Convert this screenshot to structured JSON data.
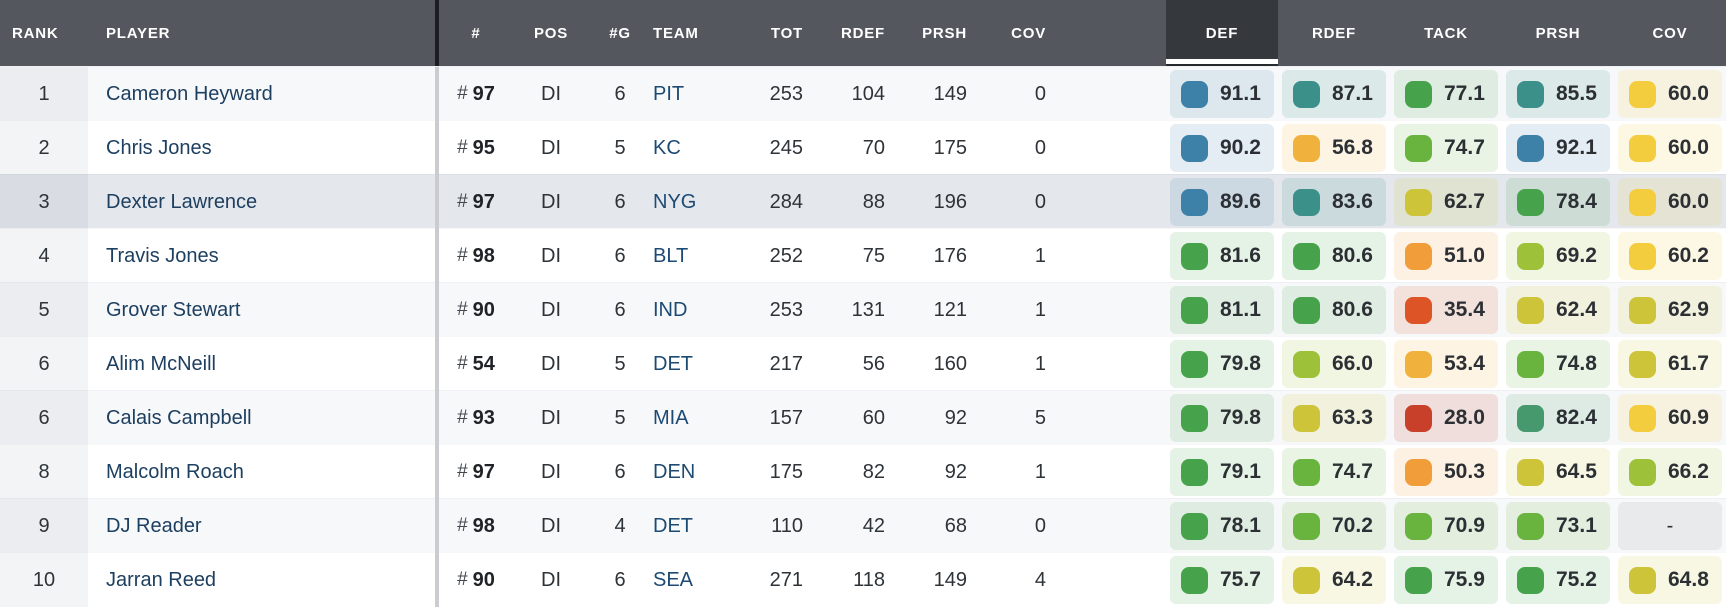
{
  "columns": {
    "rank": "RANK",
    "player": "PLAYER",
    "jersey": "#",
    "pos": "POS",
    "games": "#G",
    "team": "TEAM",
    "tot": "TOT",
    "rdef": "RDEF",
    "prsh": "PRSH",
    "cov": "COV",
    "grade_def": "DEF",
    "grade_rdef": "RDEF",
    "grade_tack": "TACK",
    "grade_prsh": "PRSH",
    "grade_cov": "COV"
  },
  "sorted_column": "DEF",
  "palette": {
    "blue": "#3d80a8",
    "teal": "#3b9089",
    "teal-green": "#46996c",
    "green": "#47a34b",
    "green-mid": "#68b43f",
    "lime": "#9dc23a",
    "olive": "#cdc43a",
    "yellow": "#f3cd3e",
    "amber": "#f0b23d",
    "orange": "#f09d3a",
    "red-orange": "#dd5427",
    "red": "#c8402a",
    "none": "#9aa0aa",
    "header_bg": "#54575e",
    "header_active_bg": "#35383d",
    "row_highlight_bg": "#e4e7ec",
    "link_color": "#1d3f60"
  },
  "rows": [
    {
      "rank": "1",
      "player": "Cameron Heyward",
      "jersey": "97",
      "pos": "DI",
      "games": "6",
      "team": "PIT",
      "tot": "253",
      "rdef": "104",
      "prsh": "149",
      "cov": "0",
      "highlighted": false,
      "grades": [
        {
          "value": "91.1",
          "color": "blue"
        },
        {
          "value": "87.1",
          "color": "teal"
        },
        {
          "value": "77.1",
          "color": "green"
        },
        {
          "value": "85.5",
          "color": "teal"
        },
        {
          "value": "60.0",
          "color": "yellow"
        }
      ]
    },
    {
      "rank": "2",
      "player": "Chris Jones",
      "jersey": "95",
      "pos": "DI",
      "games": "5",
      "team": "KC",
      "tot": "245",
      "rdef": "70",
      "prsh": "175",
      "cov": "0",
      "highlighted": false,
      "grades": [
        {
          "value": "90.2",
          "color": "blue"
        },
        {
          "value": "56.8",
          "color": "amber"
        },
        {
          "value": "74.7",
          "color": "green-mid"
        },
        {
          "value": "92.1",
          "color": "blue"
        },
        {
          "value": "60.0",
          "color": "yellow"
        }
      ]
    },
    {
      "rank": "3",
      "player": "Dexter Lawrence",
      "jersey": "97",
      "pos": "DI",
      "games": "6",
      "team": "NYG",
      "tot": "284",
      "rdef": "88",
      "prsh": "196",
      "cov": "0",
      "highlighted": true,
      "grades": [
        {
          "value": "89.6",
          "color": "blue"
        },
        {
          "value": "83.6",
          "color": "teal"
        },
        {
          "value": "62.7",
          "color": "olive"
        },
        {
          "value": "78.4",
          "color": "green"
        },
        {
          "value": "60.0",
          "color": "yellow"
        }
      ]
    },
    {
      "rank": "4",
      "player": "Travis Jones",
      "jersey": "98",
      "pos": "DI",
      "games": "6",
      "team": "BLT",
      "tot": "252",
      "rdef": "75",
      "prsh": "176",
      "cov": "1",
      "highlighted": false,
      "grades": [
        {
          "value": "81.6",
          "color": "green"
        },
        {
          "value": "80.6",
          "color": "green"
        },
        {
          "value": "51.0",
          "color": "orange"
        },
        {
          "value": "69.2",
          "color": "lime"
        },
        {
          "value": "60.2",
          "color": "yellow"
        }
      ]
    },
    {
      "rank": "5",
      "player": "Grover Stewart",
      "jersey": "90",
      "pos": "DI",
      "games": "6",
      "team": "IND",
      "tot": "253",
      "rdef": "131",
      "prsh": "121",
      "cov": "1",
      "highlighted": false,
      "grades": [
        {
          "value": "81.1",
          "color": "green"
        },
        {
          "value": "80.6",
          "color": "green"
        },
        {
          "value": "35.4",
          "color": "red-orange"
        },
        {
          "value": "62.4",
          "color": "olive"
        },
        {
          "value": "62.9",
          "color": "olive"
        }
      ]
    },
    {
      "rank": "6",
      "player": "Alim McNeill",
      "jersey": "54",
      "pos": "DI",
      "games": "5",
      "team": "DET",
      "tot": "217",
      "rdef": "56",
      "prsh": "160",
      "cov": "1",
      "highlighted": false,
      "grades": [
        {
          "value": "79.8",
          "color": "green"
        },
        {
          "value": "66.0",
          "color": "lime"
        },
        {
          "value": "53.4",
          "color": "amber"
        },
        {
          "value": "74.8",
          "color": "green-mid"
        },
        {
          "value": "61.7",
          "color": "olive"
        }
      ]
    },
    {
      "rank": "6",
      "player": "Calais Campbell",
      "jersey": "93",
      "pos": "DI",
      "games": "5",
      "team": "MIA",
      "tot": "157",
      "rdef": "60",
      "prsh": "92",
      "cov": "5",
      "highlighted": false,
      "grades": [
        {
          "value": "79.8",
          "color": "green"
        },
        {
          "value": "63.3",
          "color": "olive"
        },
        {
          "value": "28.0",
          "color": "red"
        },
        {
          "value": "82.4",
          "color": "teal-green"
        },
        {
          "value": "60.9",
          "color": "yellow"
        }
      ]
    },
    {
      "rank": "8",
      "player": "Malcolm Roach",
      "jersey": "97",
      "pos": "DI",
      "games": "6",
      "team": "DEN",
      "tot": "175",
      "rdef": "82",
      "prsh": "92",
      "cov": "1",
      "highlighted": false,
      "grades": [
        {
          "value": "79.1",
          "color": "green"
        },
        {
          "value": "74.7",
          "color": "green-mid"
        },
        {
          "value": "50.3",
          "color": "orange"
        },
        {
          "value": "64.5",
          "color": "olive"
        },
        {
          "value": "66.2",
          "color": "lime"
        }
      ]
    },
    {
      "rank": "9",
      "player": "DJ Reader",
      "jersey": "98",
      "pos": "DI",
      "games": "4",
      "team": "DET",
      "tot": "110",
      "rdef": "42",
      "prsh": "68",
      "cov": "0",
      "highlighted": false,
      "grades": [
        {
          "value": "78.1",
          "color": "green"
        },
        {
          "value": "70.2",
          "color": "green-mid"
        },
        {
          "value": "70.9",
          "color": "green-mid"
        },
        {
          "value": "73.1",
          "color": "green-mid"
        },
        {
          "value": "-",
          "color": "none"
        }
      ]
    },
    {
      "rank": "10",
      "player": "Jarran Reed",
      "jersey": "90",
      "pos": "DI",
      "games": "6",
      "team": "SEA",
      "tot": "271",
      "rdef": "118",
      "prsh": "149",
      "cov": "4",
      "highlighted": false,
      "grades": [
        {
          "value": "75.7",
          "color": "green"
        },
        {
          "value": "64.2",
          "color": "olive"
        },
        {
          "value": "75.9",
          "color": "green"
        },
        {
          "value": "75.2",
          "color": "green"
        },
        {
          "value": "64.8",
          "color": "olive"
        }
      ]
    }
  ]
}
